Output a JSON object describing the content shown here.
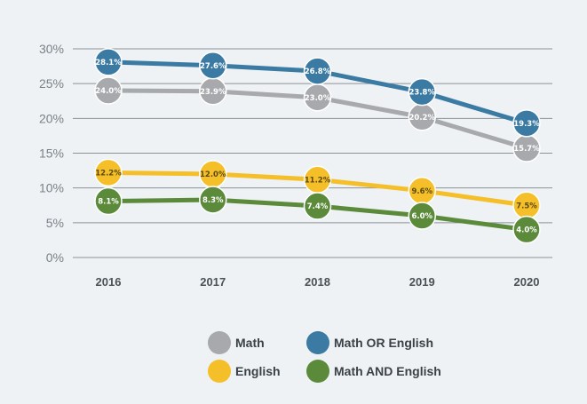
{
  "chart_data": {
    "type": "line",
    "title": "",
    "xlabel": "",
    "ylabel": "",
    "x": [
      "2016",
      "2017",
      "2018",
      "2019",
      "2020"
    ],
    "ylim": [
      0,
      30
    ],
    "yticks": [
      "0%",
      "5%",
      "10%",
      "15%",
      "20%",
      "25%",
      "30%"
    ],
    "grid": true,
    "legend_position": "bottom",
    "series": [
      {
        "name": "Math",
        "color": "#a7a9ac",
        "values": [
          24.0,
          23.9,
          23.0,
          20.2,
          15.7
        ],
        "labels": [
          "24.0%",
          "23.9%",
          "23.0%",
          "20.2%",
          "15.7%"
        ]
      },
      {
        "name": "Math OR English",
        "color": "#3a7aa3",
        "values": [
          28.1,
          27.6,
          26.8,
          23.8,
          19.3
        ],
        "labels": [
          "28.1%",
          "27.6%",
          "26.8%",
          "23.8%",
          "19.3%"
        ]
      },
      {
        "name": "English",
        "color": "#f5bf2a",
        "values": [
          12.2,
          12.0,
          11.2,
          9.6,
          7.5
        ],
        "labels": [
          "12.2%",
          "12.0%",
          "11.2%",
          "9.6%",
          "7.5%"
        ]
      },
      {
        "name": "Math AND English",
        "color": "#5a8a3a",
        "values": [
          8.1,
          8.3,
          7.4,
          6.0,
          4.0
        ],
        "labels": [
          "8.1%",
          "8.3%",
          "7.4%",
          "6.0%",
          "4.0%"
        ]
      }
    ],
    "legend": [
      {
        "series": 0
      },
      {
        "series": 1
      },
      {
        "series": 2
      },
      {
        "series": 3
      }
    ]
  }
}
